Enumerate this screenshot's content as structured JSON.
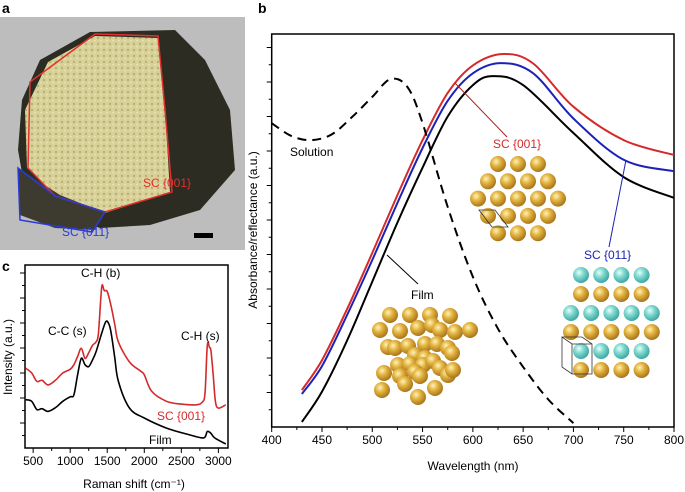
{
  "panel_labels": {
    "a": "a",
    "b": "b",
    "c": "c"
  },
  "panel_a": {
    "sc001_label": "SC {001}",
    "sc011_label": "SC {011}",
    "colors": {
      "sc001": "#e03030",
      "sc011": "#2a3bd6"
    }
  },
  "chart_data": [
    {
      "id": "b",
      "type": "line",
      "title": "",
      "xlabel": "Wavelength (nm)",
      "ylabel": "Absorbance/reflectance (a.u.)",
      "xlim": [
        400,
        800
      ],
      "ylim": [
        0,
        1
      ],
      "xticks": [
        "400",
        "450",
        "500",
        "550",
        "600",
        "650",
        "700",
        "750",
        "800"
      ],
      "series": [
        {
          "name": "SC {001}",
          "color": "#d42a2a",
          "style": "solid",
          "points": [
            [
              430,
              0.094
            ],
            [
              450,
              0.17
            ],
            [
              475,
              0.3
            ],
            [
              500,
              0.443
            ],
            [
              525,
              0.59
            ],
            [
              550,
              0.73
            ],
            [
              575,
              0.85
            ],
            [
              600,
              0.92
            ],
            [
              630,
              0.949
            ],
            [
              660,
              0.925
            ],
            [
              700,
              0.815
            ],
            [
              750,
              0.73
            ],
            [
              800,
              0.692
            ]
          ]
        },
        {
          "name": "SC {011}",
          "color": "#1c22b8",
          "style": "solid",
          "points": [
            [
              430,
              0.084
            ],
            [
              450,
              0.155
            ],
            [
              475,
              0.285
            ],
            [
              500,
              0.425
            ],
            [
              525,
              0.57
            ],
            [
              550,
              0.71
            ],
            [
              575,
              0.83
            ],
            [
              600,
              0.9
            ],
            [
              628,
              0.926
            ],
            [
              660,
              0.9
            ],
            [
              700,
              0.785
            ],
            [
              750,
              0.68
            ],
            [
              800,
              0.651
            ]
          ]
        },
        {
          "name": "Film",
          "color": "#000000",
          "style": "solid",
          "points": [
            [
              430,
              0.013
            ],
            [
              450,
              0.09
            ],
            [
              475,
              0.22
            ],
            [
              500,
              0.37
            ],
            [
              525,
              0.52
            ],
            [
              550,
              0.66
            ],
            [
              575,
              0.79
            ],
            [
              600,
              0.87
            ],
            [
              620,
              0.893
            ],
            [
              650,
              0.87
            ],
            [
              700,
              0.748
            ],
            [
              750,
              0.636
            ],
            [
              800,
              0.583
            ]
          ]
        },
        {
          "name": "Solution",
          "color": "#000000",
          "style": "dashed",
          "points": [
            [
              400,
              0.773
            ],
            [
              420,
              0.74
            ],
            [
              440,
              0.73
            ],
            [
              460,
              0.745
            ],
            [
              480,
              0.789
            ],
            [
              500,
              0.84
            ],
            [
              518,
              0.885
            ],
            [
              535,
              0.865
            ],
            [
              550,
              0.773
            ],
            [
              575,
              0.56
            ],
            [
              600,
              0.382
            ],
            [
              625,
              0.25
            ],
            [
              650,
              0.153
            ],
            [
              675,
              0.07
            ],
            [
              700,
              0.01
            ]
          ]
        }
      ],
      "annotations": [
        "Solution",
        "SC {001}",
        "SC {011}",
        "Film"
      ]
    },
    {
      "id": "c",
      "type": "line",
      "title": "",
      "xlabel": "Raman shift (cm⁻¹)",
      "ylabel": "Intensity (a.u.)",
      "xlim": [
        390,
        3130
      ],
      "ylim": [
        0,
        1
      ],
      "xticks": [
        "500",
        "1000",
        "1500",
        "2000",
        "2500",
        "3000"
      ],
      "series": [
        {
          "name": "SC {001}",
          "color": "#d42a2a",
          "points": [
            [
              400,
              0.436
            ],
            [
              480,
              0.41
            ],
            [
              550,
              0.364
            ],
            [
              620,
              0.37
            ],
            [
              700,
              0.345
            ],
            [
              800,
              0.37
            ],
            [
              900,
              0.41
            ],
            [
              1000,
              0.43
            ],
            [
              1050,
              0.455
            ],
            [
              1100,
              0.5
            ],
            [
              1150,
              0.545
            ],
            [
              1200,
              0.49
            ],
            [
              1250,
              0.52
            ],
            [
              1300,
              0.56
            ],
            [
              1350,
              0.58
            ],
            [
              1380,
              0.62
            ],
            [
              1410,
              0.8
            ],
            [
              1430,
              0.89
            ],
            [
              1460,
              0.86
            ],
            [
              1500,
              0.855
            ],
            [
              1550,
              0.78
            ],
            [
              1600,
              0.68
            ],
            [
              1650,
              0.58
            ],
            [
              1800,
              0.47
            ],
            [
              1950,
              0.42
            ],
            [
              2000,
              0.4
            ],
            [
              2100,
              0.31
            ],
            [
              2300,
              0.255
            ],
            [
              2500,
              0.24
            ],
            [
              2700,
              0.236
            ],
            [
              2780,
              0.25
            ],
            [
              2820,
              0.3
            ],
            [
              2850,
              0.56
            ],
            [
              2880,
              0.55
            ],
            [
              2900,
              0.53
            ],
            [
              2930,
              0.4
            ],
            [
              2960,
              0.255
            ],
            [
              3000,
              0.218
            ],
            [
              3100,
              0.236
            ]
          ]
        },
        {
          "name": "Film",
          "color": "#000000",
          "points": [
            [
              400,
              0.264
            ],
            [
              480,
              0.255
            ],
            [
              550,
              0.21
            ],
            [
              620,
              0.215
            ],
            [
              700,
              0.2
            ],
            [
              800,
              0.22
            ],
            [
              900,
              0.255
            ],
            [
              1000,
              0.28
            ],
            [
              1050,
              0.29
            ],
            [
              1100,
              0.4
            ],
            [
              1150,
              0.49
            ],
            [
              1200,
              0.455
            ],
            [
              1250,
              0.445
            ],
            [
              1300,
              0.48
            ],
            [
              1350,
              0.527
            ],
            [
              1420,
              0.62
            ],
            [
              1480,
              0.69
            ],
            [
              1520,
              0.68
            ],
            [
              1550,
              0.636
            ],
            [
              1600,
              0.5
            ],
            [
              1650,
              0.364
            ],
            [
              1800,
              0.218
            ],
            [
              2000,
              0.164
            ],
            [
              2300,
              0.109
            ],
            [
              2600,
              0.073
            ],
            [
              2800,
              0.055
            ],
            [
              2850,
              0.09
            ],
            [
              2900,
              0.08
            ],
            [
              2950,
              0.055
            ],
            [
              3100,
              0.022
            ]
          ]
        }
      ],
      "annotations": [
        "C-H (b)",
        "C-C (s)",
        "C-H (s)",
        "SC {001}",
        "Film"
      ]
    }
  ]
}
